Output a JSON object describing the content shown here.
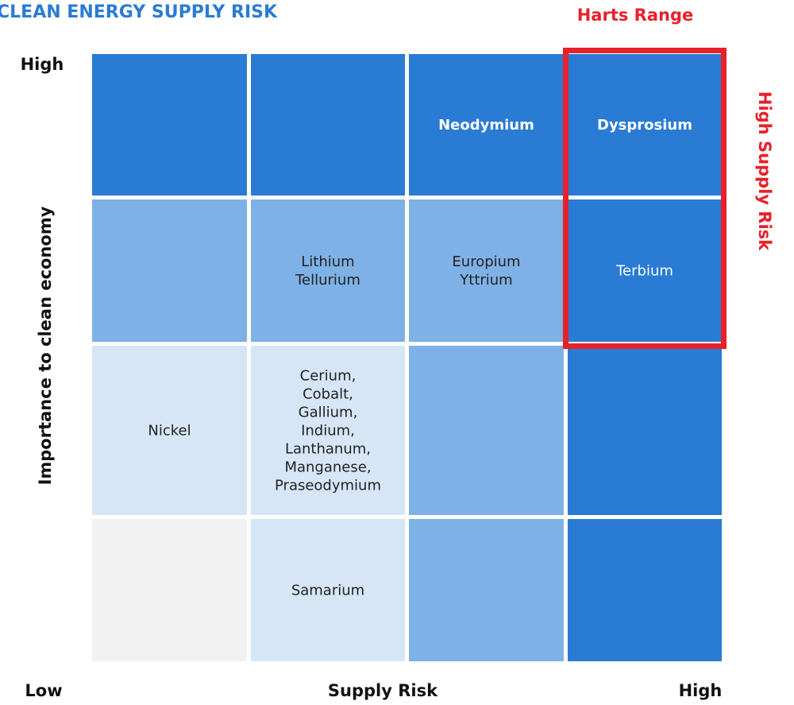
{
  "title": "CLEAN ENERGY SUPPLY RISK",
  "highlight": {
    "label": "Harts Range",
    "side_label": "High Supply Risk",
    "color": "#e8202a"
  },
  "y_axis": {
    "label": "Importance to clean economy",
    "high": "High"
  },
  "x_axis": {
    "label": "Supply Risk",
    "low": "Low",
    "high": "High"
  },
  "grid": {
    "rows": [
      [
        {
          "color": "#2a7bd4"
        },
        {
          "color": "#2a7bd4"
        },
        {
          "color": "#2a7bd4",
          "lines": [
            "Neodymium"
          ],
          "bold": true,
          "text_color": "#ffffff"
        },
        {
          "color": "#2a7bd4",
          "lines": [
            "Dysprosium"
          ],
          "bold": true,
          "text_color": "#ffffff"
        }
      ],
      [
        {
          "color": "#7eb1e6"
        },
        {
          "color": "#7eb1e6",
          "lines": [
            "Lithium",
            "Tellurium"
          ],
          "text_color": "#222222"
        },
        {
          "color": "#7eb1e6",
          "lines": [
            "Europium",
            "Yttrium"
          ],
          "text_color": "#222222"
        },
        {
          "color": "#2a7bd4",
          "lines": [
            "Terbium"
          ],
          "text_color": "#ffffff"
        }
      ],
      [
        {
          "color": "#d6e6f7",
          "lines": [
            "Nickel"
          ],
          "text_color": "#222222"
        },
        {
          "color": "#d6e6f7",
          "lines": [
            "Cerium,",
            "Cobalt,",
            "Gallium,",
            "Indium,",
            "Lanthanum,",
            "Manganese,",
            "Praseodymium"
          ],
          "text_color": "#222222"
        },
        {
          "color": "#7eb1e6"
        },
        {
          "color": "#2a7bd4"
        }
      ],
      [
        {
          "color": "#f2f2f2"
        },
        {
          "color": "#d6e6f7",
          "lines": [
            "Samarium"
          ],
          "text_color": "#222222"
        },
        {
          "color": "#7eb1e6"
        },
        {
          "color": "#2a7bd4"
        }
      ]
    ]
  }
}
